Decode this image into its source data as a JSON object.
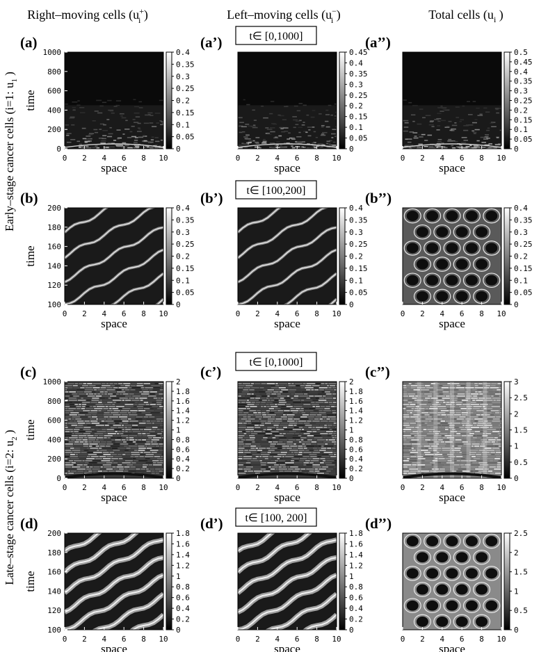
{
  "column_headers": {
    "right": "Right–moving cells (u",
    "right_sup": "+",
    "left": "Left–moving cells (u",
    "left_sup": "−",
    "total": "Total cells (u",
    "sub_i": "i",
    "close": " )"
  },
  "row_labels": {
    "early": "Early–stage cancer cells (i=1: u",
    "early_sub": "1",
    "late": "Late–stage cancer cells (i=2: u",
    "late_sub": "2",
    "close": " )"
  },
  "time_windows": [
    {
      "label": "t∈ [0,1000]"
    },
    {
      "label": "t∈ [100,200]"
    },
    {
      "label": "t∈ [0,1000]"
    },
    {
      "label": "t∈ [100, 200]"
    }
  ],
  "axis": {
    "xlabel": "space",
    "ylabel": "time"
  },
  "colors": {
    "low": "#000000",
    "high": "#ffffff",
    "box_border": "#000000"
  },
  "chart_data": [
    {
      "type": "heatmap",
      "panel": "(a)",
      "pattern": "transient",
      "xlim": [
        0,
        10
      ],
      "ylim": [
        0,
        1000
      ],
      "xticks": [
        "0",
        "2",
        "4",
        "6",
        "8",
        "10"
      ],
      "yticks": [
        "0",
        "200",
        "400",
        "600",
        "800",
        "1000"
      ],
      "cbar_max": 0.4,
      "cbar_ticks": [
        "0",
        "0.05",
        "0.1",
        "0.15",
        "0.2",
        "0.25",
        "0.3",
        "0.35",
        "0.4"
      ]
    },
    {
      "type": "heatmap",
      "panel": "(a’)",
      "pattern": "transient",
      "xlim": [
        0,
        10
      ],
      "ylim": [
        0,
        1000
      ],
      "xticks": [
        "0",
        "2",
        "4",
        "6",
        "8",
        "10"
      ],
      "yticks": [],
      "cbar_max": 0.45,
      "cbar_ticks": [
        "0",
        "0.05",
        "0.1",
        "0.15",
        "0.2",
        "0.25",
        "0.3",
        "0.35",
        "0.4",
        "0.45"
      ]
    },
    {
      "type": "heatmap",
      "panel": "(a’’)",
      "pattern": "transient",
      "xlim": [
        0,
        10
      ],
      "ylim": [
        0,
        1000
      ],
      "xticks": [
        "0",
        "2",
        "4",
        "6",
        "8",
        "10"
      ],
      "yticks": [],
      "cbar_max": 0.5,
      "cbar_ticks": [
        "0",
        "0.05",
        "0.1",
        "0.15",
        "0.2",
        "0.25",
        "0.3",
        "0.35",
        "0.4",
        "0.45",
        "0.5"
      ]
    },
    {
      "type": "heatmap",
      "panel": "(b)",
      "pattern": "waves",
      "xlim": [
        0,
        10
      ],
      "ylim": [
        100,
        200
      ],
      "xticks": [
        "0",
        "2",
        "4",
        "6",
        "8",
        "10"
      ],
      "yticks": [
        "100",
        "120",
        "140",
        "160",
        "180",
        "200"
      ],
      "cbar_max": 0.4,
      "cbar_ticks": [
        "0",
        "0.05",
        "0.1",
        "0.15",
        "0.2",
        "0.25",
        "0.3",
        "0.35",
        "0.4"
      ]
    },
    {
      "type": "heatmap",
      "panel": "(b’)",
      "pattern": "waves",
      "xlim": [
        0,
        10
      ],
      "ylim": [
        100,
        200
      ],
      "xticks": [
        "0",
        "2",
        "4",
        "6",
        "8",
        "10"
      ],
      "yticks": [],
      "cbar_max": 0.4,
      "cbar_ticks": [
        "0",
        "0.05",
        "0.1",
        "0.15",
        "0.2",
        "0.25",
        "0.3",
        "0.35",
        "0.4"
      ]
    },
    {
      "type": "heatmap",
      "panel": "(b’’)",
      "pattern": "lattice",
      "xlim": [
        0,
        10
      ],
      "ylim": [
        100,
        200
      ],
      "xticks": [
        "0",
        "2",
        "4",
        "6",
        "8",
        "10"
      ],
      "yticks": [],
      "cbar_max": 0.4,
      "cbar_ticks": [
        "0",
        "0.05",
        "0.1",
        "0.15",
        "0.2",
        "0.25",
        "0.3",
        "0.35",
        "0.4"
      ]
    },
    {
      "type": "heatmap",
      "panel": "(c)",
      "pattern": "dense",
      "xlim": [
        0,
        10
      ],
      "ylim": [
        0,
        1000
      ],
      "xticks": [
        "0",
        "2",
        "4",
        "6",
        "8",
        "10"
      ],
      "yticks": [
        "0",
        "200",
        "400",
        "600",
        "800",
        "1000"
      ],
      "cbar_max": 2,
      "cbar_ticks": [
        "0",
        "0.2",
        "0.4",
        "0.6",
        "0.8",
        "1",
        "1.2",
        "1.4",
        "1.6",
        "1.8",
        "2"
      ]
    },
    {
      "type": "heatmap",
      "panel": "(c’)",
      "pattern": "dense",
      "xlim": [
        0,
        10
      ],
      "ylim": [
        0,
        1000
      ],
      "xticks": [
        "0",
        "2",
        "4",
        "6",
        "8",
        "10"
      ],
      "yticks": [],
      "cbar_max": 2,
      "cbar_ticks": [
        "0",
        "0.2",
        "0.4",
        "0.6",
        "0.8",
        "1",
        "1.2",
        "1.4",
        "1.6",
        "1.8",
        "2"
      ]
    },
    {
      "type": "heatmap",
      "panel": "(c’’)",
      "pattern": "dense_total",
      "xlim": [
        0,
        10
      ],
      "ylim": [
        0,
        1000
      ],
      "xticks": [
        "0",
        "2",
        "4",
        "6",
        "8",
        "10"
      ],
      "yticks": [],
      "cbar_max": 3,
      "cbar_ticks": [
        "0",
        "0.5",
        "1",
        "1.5",
        "2",
        "2.5",
        "3"
      ]
    },
    {
      "type": "heatmap",
      "panel": "(d)",
      "pattern": "waves_strong",
      "xlim": [
        0,
        10
      ],
      "ylim": [
        100,
        200
      ],
      "xticks": [
        "0",
        "2",
        "4",
        "6",
        "8",
        "10"
      ],
      "yticks": [
        "100",
        "120",
        "140",
        "160",
        "180",
        "200"
      ],
      "cbar_max": 1.8,
      "cbar_ticks": [
        "0",
        "0.2",
        "0.4",
        "0.6",
        "0.8",
        "1",
        "1.2",
        "1.4",
        "1.6",
        "1.8"
      ]
    },
    {
      "type": "heatmap",
      "panel": "(d’)",
      "pattern": "waves_strong",
      "xlim": [
        0,
        10
      ],
      "ylim": [
        100,
        200
      ],
      "xticks": [
        "0",
        "2",
        "4",
        "6",
        "8",
        "10"
      ],
      "yticks": [],
      "cbar_max": 1.8,
      "cbar_ticks": [
        "0",
        "0.2",
        "0.4",
        "0.6",
        "0.8",
        "1",
        "1.2",
        "1.4",
        "1.6",
        "1.8"
      ]
    },
    {
      "type": "heatmap",
      "panel": "(d’’)",
      "pattern": "lattice_strong",
      "xlim": [
        0,
        10
      ],
      "ylim": [
        100,
        200
      ],
      "xticks": [
        "0",
        "2",
        "4",
        "6",
        "8",
        "10"
      ],
      "yticks": [],
      "cbar_max": 2.5,
      "cbar_ticks": [
        "0",
        "0.5",
        "1",
        "1.5",
        "2",
        "2.5"
      ]
    }
  ]
}
